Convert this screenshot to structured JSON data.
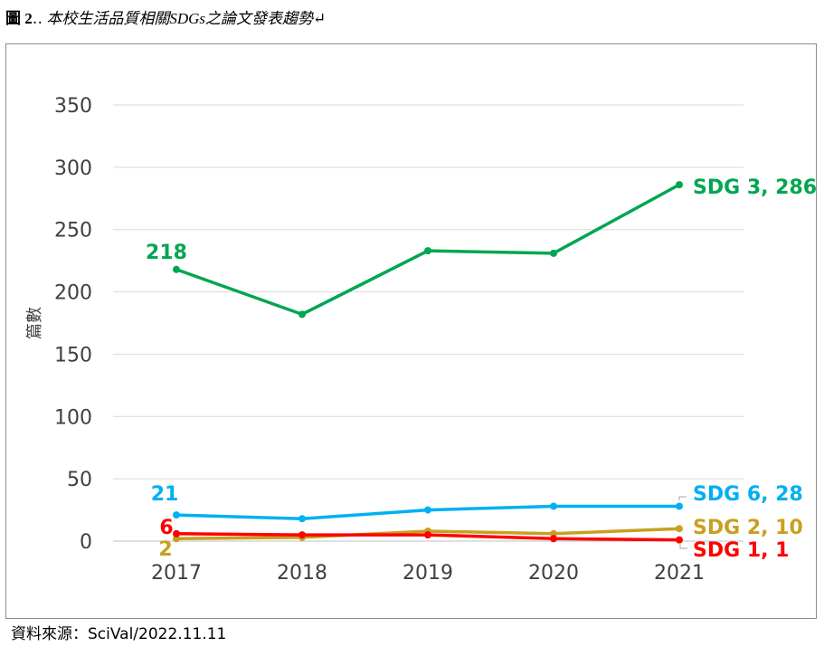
{
  "caption": {
    "fig_label": "圖 2",
    "text": "本校生活品質相關SDGs之論文發表趨勢"
  },
  "source": "資料來源：SciVal/2022.11.11",
  "chart_data": {
    "type": "line",
    "categories": [
      "2017",
      "2018",
      "2019",
      "2020",
      "2021"
    ],
    "ylabel": "篇數",
    "ylim": [
      0,
      350
    ],
    "yticks": [
      0,
      50,
      100,
      150,
      200,
      250,
      300,
      350
    ],
    "grid": true,
    "series": [
      {
        "name": "SDG 3",
        "color": "#00a651",
        "values": [
          218,
          182,
          233,
          231,
          286
        ],
        "start_label": "218",
        "end_label": "SDG 3, 286"
      },
      {
        "name": "SDG 6",
        "color": "#00b0f0",
        "values": [
          21,
          18,
          25,
          28,
          28
        ],
        "start_label": "21",
        "end_label": "SDG 6, 28"
      },
      {
        "name": "SDG 2",
        "color": "#c8a020",
        "values": [
          2,
          3,
          8,
          6,
          10
        ],
        "start_label": "2",
        "end_label": "SDG 2, 10"
      },
      {
        "name": "SDG 1",
        "color": "#ff0000",
        "values": [
          6,
          5,
          5,
          2,
          1
        ],
        "start_label": "6",
        "end_label": "SDG 1, 1"
      }
    ]
  }
}
